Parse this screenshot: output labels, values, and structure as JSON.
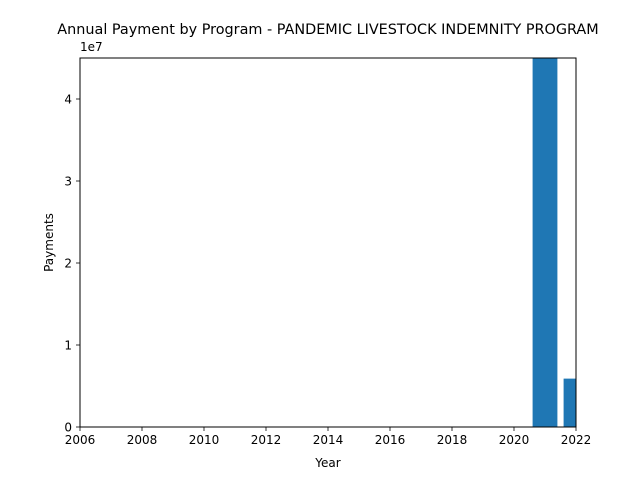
{
  "chart_data": {
    "type": "bar",
    "title": "Annual Payment by Program - PANDEMIC LIVESTOCK INDEMNITY PROGRAM",
    "xlabel": "Year",
    "ylabel": "Payments",
    "y_offset_label": "1e7",
    "xlim": [
      2006,
      2022
    ],
    "ylim": [
      0,
      45000000
    ],
    "x_ticks": [
      "2006",
      "2008",
      "2010",
      "2012",
      "2014",
      "2016",
      "2018",
      "2020",
      "2022"
    ],
    "y_ticks": [
      "0",
      "1",
      "2",
      "3",
      "4"
    ],
    "x_tick_values": [
      2006,
      2008,
      2010,
      2012,
      2014,
      2016,
      2018,
      2020,
      2022
    ],
    "y_tick_values": [
      0,
      10000000,
      20000000,
      30000000,
      40000000
    ],
    "categories": [
      2021,
      2022
    ],
    "values": [
      46000000,
      5900000
    ],
    "bar_width": 0.8,
    "grid": false,
    "bar_color": "#1f77b4"
  }
}
